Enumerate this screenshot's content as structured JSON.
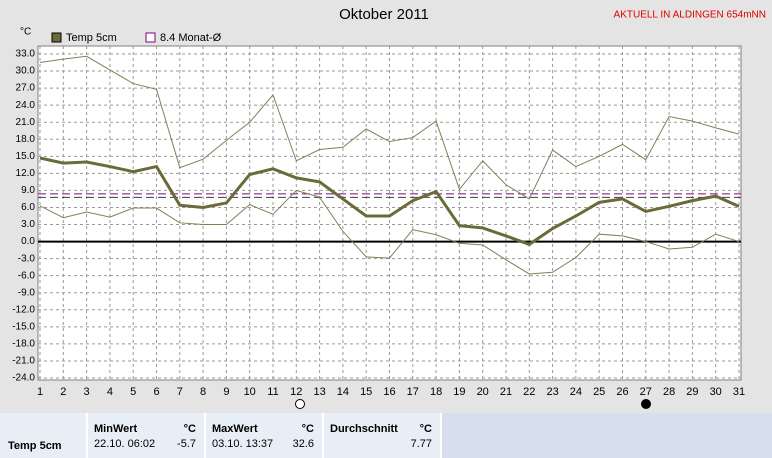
{
  "chart_data": {
    "type": "line",
    "title": "Oktober 2011",
    "annotation": "AKTUELL IN ALDINGEN 654mNN",
    "y_unit": "°C",
    "x": [
      1,
      2,
      3,
      4,
      5,
      6,
      7,
      8,
      9,
      10,
      11,
      12,
      13,
      14,
      15,
      16,
      17,
      18,
      19,
      20,
      21,
      22,
      23,
      24,
      25,
      26,
      27,
      28,
      29,
      30,
      31
    ],
    "xlim": [
      1,
      31
    ],
    "xticks": [
      1,
      2,
      3,
      4,
      5,
      6,
      7,
      8,
      9,
      10,
      11,
      12,
      13,
      14,
      15,
      16,
      17,
      18,
      19,
      20,
      21,
      22,
      23,
      24,
      25,
      26,
      27,
      28,
      29,
      30,
      31
    ],
    "ylim": [
      -24,
      33
    ],
    "yticks": [
      {
        "value": 33,
        "label": "33.0"
      },
      {
        "value": 30,
        "label": "30.0"
      },
      {
        "value": 27,
        "label": "27.0"
      },
      {
        "value": 24,
        "label": "24.0"
      },
      {
        "value": 21,
        "label": "21.0"
      },
      {
        "value": 18,
        "label": "18.0"
      },
      {
        "value": 15,
        "label": "15.0"
      },
      {
        "value": 12,
        "label": "12.0"
      },
      {
        "value": 9,
        "label": "9.0"
      },
      {
        "value": 6,
        "label": "6.0"
      },
      {
        "value": 3,
        "label": "3.0"
      },
      {
        "value": 0,
        "label": "0.0"
      },
      {
        "value": -3,
        "label": "-3.0"
      },
      {
        "value": -6,
        "label": "-6.0"
      },
      {
        "value": -9,
        "label": "-9.0"
      },
      {
        "value": -12,
        "label": "-12.0"
      },
      {
        "value": -15,
        "label": "-15.0"
      },
      {
        "value": -18,
        "label": "-18.0"
      },
      {
        "value": -21,
        "label": "-21.0"
      },
      {
        "value": -24,
        "label": "-24.0"
      }
    ],
    "grid": true,
    "series": [
      {
        "name": "Temp 5cm",
        "color": "#6b6b3a",
        "values": [
          14.7,
          13.8,
          14.0,
          13.2,
          12.3,
          13.2,
          6.4,
          6.0,
          6.8,
          11.8,
          12.8,
          11.2,
          10.5,
          7.5,
          4.5,
          4.5,
          7.2,
          8.8,
          2.8,
          2.4,
          1.0,
          -0.5,
          2.3,
          4.5,
          6.9,
          7.5,
          5.3,
          6.2,
          7.2,
          8.0,
          6.2
        ]
      },
      {
        "color": "#80805a",
        "values": [
          31.5,
          32.1,
          32.6,
          30.2,
          27.8,
          26.8,
          13.0,
          14.5,
          17.8,
          21.0,
          25.8,
          14.2,
          16.2,
          16.6,
          19.8,
          17.6,
          18.3,
          21.2,
          9.2,
          14.2,
          10.0,
          7.5,
          16.1,
          13.2,
          15.0,
          17.1,
          14.4,
          22.0,
          21.2,
          20.0,
          18.9
        ]
      },
      {
        "color": "#80805a",
        "values": [
          6.3,
          4.2,
          5.2,
          4.3,
          5.9,
          5.9,
          3.3,
          3.0,
          3.0,
          6.5,
          4.8,
          9.0,
          7.8,
          1.8,
          -2.7,
          -2.9,
          2.1,
          1.2,
          -0.3,
          -0.6,
          -3.2,
          -5.7,
          -5.4,
          -2.8,
          1.3,
          1.0,
          0.0,
          -1.3,
          -1.0,
          1.3,
          0.0
        ]
      }
    ],
    "reference_lines": [
      {
        "value": 8.4,
        "label": "8.4 Monat-Ø",
        "color": "#800080"
      },
      {
        "value": 7.77,
        "color": "#404040"
      }
    ]
  },
  "stats": {
    "row_label": "Temp 5cm",
    "columns": [
      {
        "title": "MinWert",
        "unit": "°C",
        "time": "22.10.  06:02",
        "value": -5.7
      },
      {
        "title": "MaxWert",
        "unit": "°C",
        "time": "03.10.  13:37",
        "value": 32.6
      },
      {
        "title": "Durchschnitt",
        "unit": "°C",
        "value": 7.77
      }
    ]
  }
}
